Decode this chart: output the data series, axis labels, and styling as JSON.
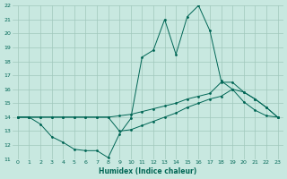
{
  "xlabel": "Humidex (Indice chaleur)",
  "xlim": [
    -0.5,
    23.5
  ],
  "ylim": [
    11,
    22
  ],
  "yticks": [
    11,
    12,
    13,
    14,
    15,
    16,
    17,
    18,
    19,
    20,
    21,
    22
  ],
  "xticks": [
    0,
    1,
    2,
    3,
    4,
    5,
    6,
    7,
    8,
    9,
    10,
    11,
    12,
    13,
    14,
    15,
    16,
    17,
    18,
    19,
    20,
    21,
    22,
    23
  ],
  "bg_color": "#c8e8e0",
  "grid_color": "#a0c8bc",
  "line_color": "#006655",
  "line1_y": [
    14.0,
    14.0,
    13.5,
    12.6,
    12.2,
    11.7,
    11.6,
    11.6,
    11.1,
    12.8,
    13.9,
    18.3,
    18.8,
    21.0,
    18.5,
    21.2,
    22.0,
    20.2,
    16.6,
    16.0,
    15.1,
    14.5,
    14.1,
    14.0
  ],
  "line2_y": [
    14.0,
    14.0,
    14.0,
    14.0,
    14.0,
    14.0,
    14.0,
    14.0,
    14.0,
    14.1,
    14.2,
    14.4,
    14.6,
    14.8,
    15.0,
    15.3,
    15.5,
    15.7,
    16.5,
    16.5,
    15.8,
    15.3,
    14.7,
    14.0
  ],
  "line3_y": [
    14.0,
    14.0,
    14.0,
    14.0,
    14.0,
    14.0,
    14.0,
    14.0,
    14.0,
    13.0,
    13.1,
    13.4,
    13.7,
    14.0,
    14.3,
    14.7,
    15.0,
    15.3,
    15.5,
    16.0,
    15.8,
    15.3,
    14.7,
    14.0
  ]
}
